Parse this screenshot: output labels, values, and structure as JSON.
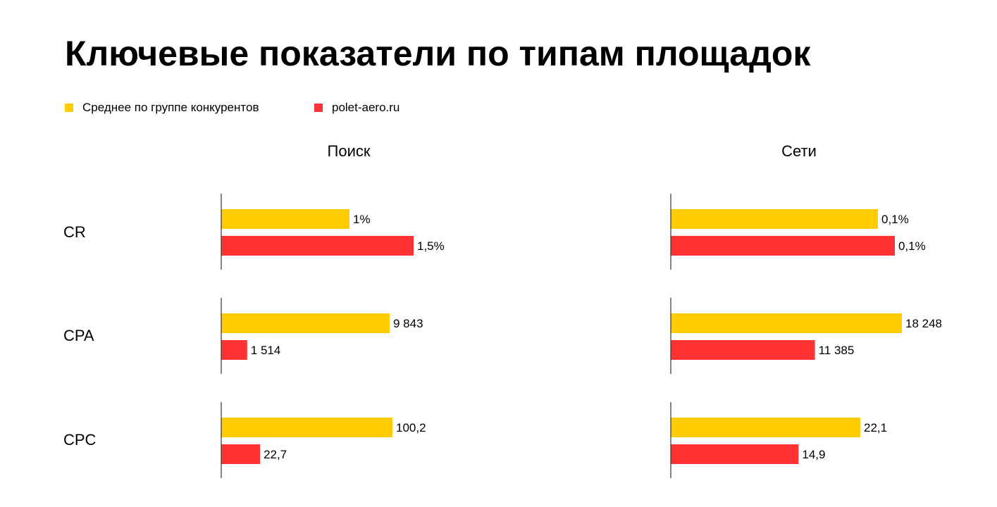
{
  "title": "Ключевые показатели по типам площадок",
  "legend": [
    {
      "label": "Среднее по группе конкурентов",
      "color": "#FFCC00"
    },
    {
      "label": "polet-aero.ru",
      "color": "#FF3333"
    }
  ],
  "chart_data": {
    "type": "bar",
    "orientation": "horizontal",
    "series": [
      {
        "name": "Среднее по группе конкурентов",
        "color": "#FFCC00"
      },
      {
        "name": "polet-aero.ru",
        "color": "#FF3333"
      }
    ],
    "metrics": [
      "CR",
      "CPA",
      "CPC"
    ],
    "panels": [
      {
        "title": "Поиск",
        "groups": [
          {
            "metric": "CR",
            "values": [
              1,
              1.5
            ],
            "labels": [
              "1%",
              "1,5%"
            ]
          },
          {
            "metric": "CPA",
            "values": [
              9843,
              1514
            ],
            "labels": [
              "9 843",
              "1 514"
            ]
          },
          {
            "metric": "CPC",
            "values": [
              100.2,
              22.7
            ],
            "labels": [
              "100,2",
              "22,7"
            ]
          }
        ]
      },
      {
        "title": "Сети",
        "groups": [
          {
            "metric": "CR",
            "values": [
              0.1,
              0.1
            ],
            "labels": [
              "0,1%",
              "0,1%"
            ]
          },
          {
            "metric": "CPA",
            "values": [
              18248,
              11385
            ],
            "labels": [
              "18 248",
              "11 385"
            ]
          },
          {
            "metric": "CPC",
            "values": [
              22.1,
              14.9
            ],
            "labels": [
              "22,1",
              "14,9"
            ]
          }
        ]
      }
    ],
    "grid": false,
    "legend_position": "top-left"
  }
}
